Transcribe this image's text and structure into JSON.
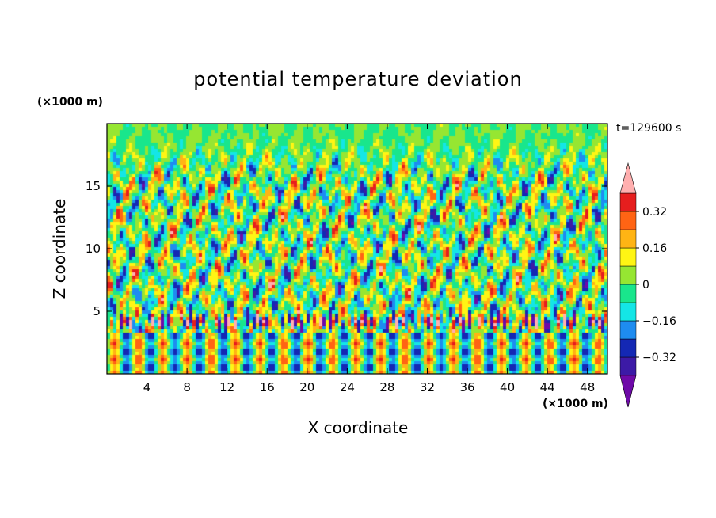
{
  "chart_data": {
    "type": "heatmap",
    "title": "potential temperature deviation",
    "xlabel": "X coordinate",
    "ylabel": "Z coordinate",
    "x_unit": "(×1000 m)",
    "y_unit": "(×1000 m)",
    "annotation": "t=129600 s",
    "xlim": [
      0,
      50
    ],
    "ylim": [
      0,
      20
    ],
    "xticks": [
      4,
      8,
      12,
      16,
      20,
      24,
      28,
      32,
      36,
      40,
      44,
      48
    ],
    "yticks": [
      5,
      10,
      15
    ],
    "grid": false,
    "colorbar": {
      "ticks": [
        0.32,
        0.16,
        0,
        -0.16,
        -0.32
      ],
      "tick_labels": [
        "0.32",
        "0.16",
        "0",
        "−0.16",
        "−0.32"
      ],
      "levels": [
        -0.4,
        -0.32,
        -0.24,
        -0.16,
        -0.08,
        0,
        0.08,
        0.16,
        0.24,
        0.32,
        0.4
      ],
      "colors": [
        "#6e0aa8",
        "#3c1aa6",
        "#1428b4",
        "#1e8cf0",
        "#14e6e6",
        "#19e68c",
        "#96e632",
        "#fff514",
        "#ffb414",
        "#ff6414",
        "#e61e1e",
        "#ffafaf"
      ],
      "extend": "both"
    }
  }
}
